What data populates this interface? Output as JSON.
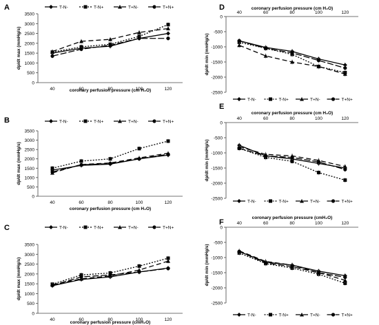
{
  "figure_title": "",
  "legend_labels": [
    "T-N-",
    "T-N+",
    "T+N-",
    "T+N+"
  ],
  "chart_data": [
    {
      "type": "line",
      "panel_label": "A",
      "xlabel": "coronary perfusion pressure (cm H₂O)",
      "ylabel": "dp/dt max (mmHg/s)",
      "x": [
        40,
        60,
        80,
        100,
        120
      ],
      "x_ticks": [
        "40",
        "60",
        "80",
        "100",
        "120"
      ],
      "ylim": [
        0,
        3500
      ],
      "y_ticks": [
        "0",
        "500",
        "1000",
        "1500",
        "2000",
        "2500",
        "3000",
        "3500"
      ],
      "xlabel_position": "bottom",
      "series": [
        {
          "name": "T-N-",
          "values": [
            1500,
            1750,
            1850,
            2250,
            2500
          ]
        },
        {
          "name": "T-N+",
          "values": [
            1550,
            1820,
            1950,
            2350,
            2950
          ]
        },
        {
          "name": "T+N-",
          "values": [
            1580,
            2100,
            2200,
            2550,
            2750
          ]
        },
        {
          "name": "T+N+",
          "values": [
            1350,
            1700,
            1900,
            2250,
            2250
          ]
        }
      ]
    },
    {
      "type": "line",
      "panel_label": "D",
      "xlabel": "coronary perfusion pressure (cm H₂O)",
      "ylabel": "dp/dt min (mmHg/s)",
      "x": [
        40,
        60,
        80,
        100,
        120
      ],
      "x_ticks": [
        "40",
        "60",
        "80",
        "100",
        "120"
      ],
      "ylim": [
        -2500,
        0
      ],
      "y_ticks": [
        "0",
        "-500",
        "-1000",
        "-1500",
        "-2000",
        "-2500"
      ],
      "xlabel_position": "top",
      "series": [
        {
          "name": "T-N-",
          "values": [
            -800,
            -1020,
            -1150,
            -1400,
            -1600
          ]
        },
        {
          "name": "T-N+",
          "values": [
            -850,
            -1050,
            -1250,
            -1650,
            -1850
          ]
        },
        {
          "name": "T+N-",
          "values": [
            -950,
            -1300,
            -1500,
            -1650,
            -1900
          ]
        },
        {
          "name": "T+N+",
          "values": [
            -800,
            -1050,
            -1200,
            -1450,
            -1700
          ]
        }
      ]
    },
    {
      "type": "line",
      "panel_label": "B",
      "xlabel": "coronary perfusion pressure (cm H₂O)",
      "ylabel": "dp/dt max (mmHg/s)",
      "x": [
        40,
        60,
        80,
        100,
        120
      ],
      "x_ticks": [
        "40",
        "60",
        "80",
        "100",
        "120"
      ],
      "ylim": [
        0,
        3500
      ],
      "y_ticks": [
        "0",
        "500",
        "1000",
        "1500",
        "2000",
        "2500",
        "3000",
        "3500"
      ],
      "xlabel_position": "bottom",
      "series": [
        {
          "name": "T-N-",
          "values": [
            1400,
            1650,
            1720,
            2000,
            2200
          ]
        },
        {
          "name": "T-N+",
          "values": [
            1500,
            1880,
            2000,
            2550,
            2950
          ]
        },
        {
          "name": "T+N-",
          "values": [
            1250,
            1700,
            1780,
            2050,
            2300
          ]
        },
        {
          "name": "T+N+",
          "values": [
            1300,
            1680,
            1750,
            2000,
            2250
          ]
        }
      ]
    },
    {
      "type": "line",
      "panel_label": "E",
      "xlabel": "coronary perfusion pressure (cm H₂O)",
      "ylabel": "dp/dt min (mmHg/s)",
      "x": [
        40,
        60,
        80,
        100,
        120
      ],
      "x_ticks": [
        "40",
        "60",
        "80",
        "100",
        "120"
      ],
      "ylim": [
        -2500,
        0
      ],
      "y_ticks": [
        "0",
        "-500",
        "-1000",
        "-1500",
        "-2000",
        "-2500"
      ],
      "xlabel_position": "top",
      "series": [
        {
          "name": "T-N-",
          "values": [
            -750,
            -1100,
            -1200,
            -1350,
            -1500
          ]
        },
        {
          "name": "T-N+",
          "values": [
            -850,
            -1150,
            -1280,
            -1650,
            -1900
          ]
        },
        {
          "name": "T+N-",
          "values": [
            -800,
            -1050,
            -1100,
            -1250,
            -1450
          ]
        },
        {
          "name": "T+N+",
          "values": [
            -850,
            -1100,
            -1150,
            -1300,
            -1550
          ]
        }
      ]
    },
    {
      "type": "line",
      "panel_label": "C",
      "xlabel": "coronary perfusion pressure (cmH₂O)",
      "ylabel": "dp/dt max (mmHg/s)",
      "x": [
        40,
        60,
        80,
        100,
        120
      ],
      "x_ticks": [
        "40",
        "60",
        "80",
        "100",
        "120"
      ],
      "ylim": [
        0,
        3500
      ],
      "y_ticks": [
        "0",
        "500",
        "1000",
        "1500",
        "2000",
        "2500",
        "3000",
        "3500"
      ],
      "xlabel_position": "bottom",
      "series": [
        {
          "name": "T-N-",
          "values": [
            1400,
            1720,
            1850,
            2100,
            2300
          ]
        },
        {
          "name": "T-N+",
          "values": [
            1480,
            1950,
            2050,
            2400,
            2800
          ]
        },
        {
          "name": "T+N-",
          "values": [
            1450,
            1750,
            1900,
            2200,
            2650
          ]
        },
        {
          "name": "T+N+",
          "values": [
            1420,
            1850,
            1950,
            2100,
            2280
          ]
        }
      ]
    },
    {
      "type": "line",
      "panel_label": "F",
      "xlabel": "coronary perfusion pressure (cmH₂O)",
      "ylabel": "dp/dt min (mmHg/s)",
      "x": [
        40,
        60,
        80,
        100,
        120
      ],
      "x_ticks": [
        "40",
        "60",
        "80",
        "100",
        "120"
      ],
      "ylim": [
        -2500,
        0
      ],
      "y_ticks": [
        "0",
        "-500",
        "-1000",
        "-1500",
        "-2000",
        "-2500"
      ],
      "xlabel_position": "top",
      "series": [
        {
          "name": "T-N-",
          "values": [
            -800,
            -1150,
            -1250,
            -1450,
            -1600
          ]
        },
        {
          "name": "T-N+",
          "values": [
            -850,
            -1200,
            -1350,
            -1550,
            -1850
          ]
        },
        {
          "name": "T+N-",
          "values": [
            -780,
            -1130,
            -1250,
            -1500,
            -1750
          ]
        },
        {
          "name": "T+N+",
          "values": [
            -800,
            -1180,
            -1300,
            -1500,
            -1650
          ]
        }
      ]
    }
  ]
}
